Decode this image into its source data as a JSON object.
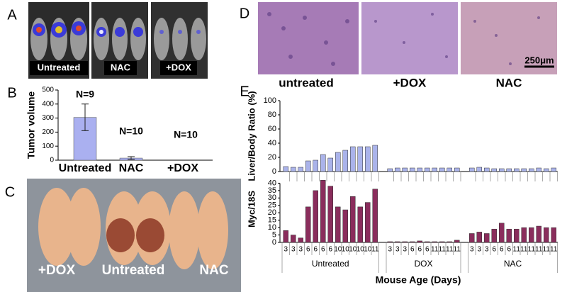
{
  "panel_labels": [
    "A",
    "B",
    "C",
    "D",
    "E"
  ],
  "photo_a": {
    "labels": [
      "Untreated",
      "NAC",
      "+DOX"
    ]
  },
  "photo_c": {
    "labels": [
      "+DOX",
      "Untreated",
      "NAC"
    ]
  },
  "photo_d": {
    "labels": [
      "untreated",
      "+DOX",
      "NAC"
    ],
    "scale_bar": "250μm"
  },
  "chart_data": [
    {
      "type": "bar",
      "ylabel": "Tumor volume",
      "categories": [
        "Untreated",
        "NAC",
        "+DOX"
      ],
      "values": [
        305,
        15,
        0
      ],
      "errors": [
        95,
        10,
        null
      ],
      "annotations": [
        "N=9",
        "N=10",
        "N=10"
      ],
      "color": "#aab0f0",
      "ylim": [
        0,
        500
      ],
      "yticks": [
        0,
        100,
        200,
        300,
        400,
        500
      ]
    },
    {
      "type": "grouped-bars",
      "xlabel": "Mouse Age (Days)",
      "panels": [
        {
          "ylabel": "Liver/Body Ratio (%)",
          "ylim": [
            0,
            100
          ],
          "yticks": [
            0,
            20,
            40,
            60,
            80,
            100
          ],
          "color": "#aab3ea"
        },
        {
          "ylabel": "Myc/18S",
          "ylim": [
            0,
            45
          ],
          "yticks": [
            0,
            5,
            10,
            15,
            20,
            25,
            30,
            35,
            40
          ],
          "color": "#8a2d5c"
        }
      ],
      "groups": [
        {
          "name": "Untreated",
          "categories": [
            "3",
            "3",
            "3",
            "6",
            "6",
            "6",
            "6",
            "10",
            "10",
            "10",
            "10",
            "10",
            "11"
          ],
          "values": [
            [
              7,
              6,
              6,
              15,
              16,
              24,
              19,
              27,
              30,
              35,
              35,
              35,
              37
            ],
            [
              8,
              5,
              3,
              24,
              35,
              42,
              38,
              24,
              22,
              31,
              24,
              27,
              36
            ]
          ]
        },
        {
          "name": "DOX",
          "categories": [
            "3",
            "3",
            "3",
            "6",
            "6",
            "6",
            "11",
            "11",
            "11",
            "11"
          ],
          "values": [
            [
              4,
              5,
              5,
              5,
              5,
              5,
              5,
              5,
              5,
              5
            ],
            [
              0.5,
              0.5,
              0.5,
              0.5,
              1,
              0.5,
              0.5,
              0.5,
              0.5,
              1.5
            ]
          ]
        },
        {
          "name": "NAC",
          "categories": [
            "3",
            "3",
            "3",
            "6",
            "6",
            "6",
            "11",
            "11",
            "11",
            "11",
            "11",
            "11"
          ],
          "values": [
            [
              5,
              6,
              5,
              4,
              4,
              4,
              4,
              4,
              4,
              5,
              4,
              5
            ],
            [
              6,
              7,
              6,
              9,
              13,
              9,
              9,
              10,
              10,
              11,
              10,
              10
            ]
          ]
        }
      ]
    }
  ]
}
